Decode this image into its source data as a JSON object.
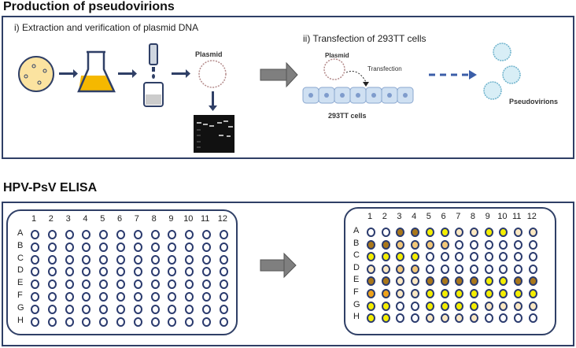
{
  "top": {
    "title": "Production of pseudovirions",
    "step1": "i) Extraction and verification of plasmid DNA",
    "plasmid_label": "Plasmid",
    "step2": "ii) Transfection of 293TT cells",
    "plasmid_label2": "Plasmid",
    "transfection": "Transfection",
    "cells": "293TT cells",
    "pseudovirions": "Pseudovirions"
  },
  "bottom": {
    "title": "HPV-PsV ELISA",
    "columns": [
      "1",
      "2",
      "3",
      "4",
      "5",
      "6",
      "7",
      "8",
      "9",
      "10",
      "11",
      "12"
    ],
    "rows": [
      "A",
      "B",
      "C",
      "D",
      "E",
      "F",
      "G",
      "H"
    ],
    "well_colors": {
      "w": "#ffffff",
      "p": "#fbe8c2",
      "l": "#f3c878",
      "y": "#f4ee00",
      "o": "#eea21c",
      "d": "#a9771a"
    },
    "result_plate": [
      "wwddyyppyypp",
      "ddllllwwwwww",
      "yyyywwwwwwww",
      "ppllwwwwwwww",
      "ddppddddyydd",
      "ooppyyyyyyyy",
      "yywwyyyypppp",
      "yywwppppwwww"
    ]
  },
  "colors": {
    "border": "#2f3f66",
    "arrow_gray": "#7f7f7f",
    "arrow_blue": "#3b5ea8",
    "flask": "#f5b800"
  }
}
